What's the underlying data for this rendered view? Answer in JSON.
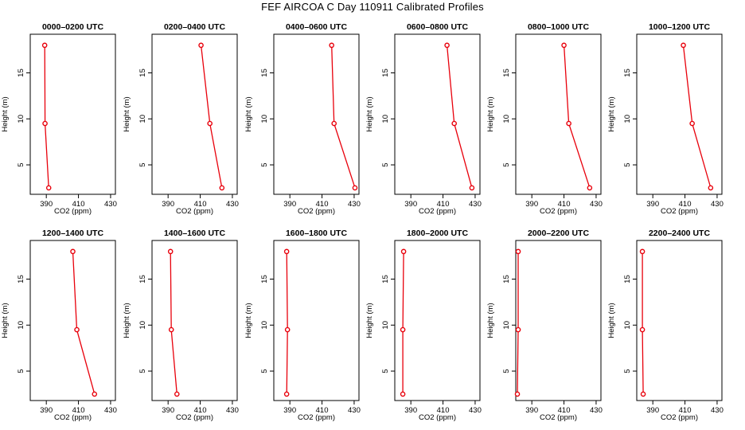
{
  "title": "FEF AIRCOA C  Day 110911  Calibrated Profiles",
  "colors": {
    "series": "#e8000b",
    "axis": "#000000"
  },
  "chart_data": [
    {
      "type": "line",
      "title": "0000–0200 UTC",
      "xlabel": "CO2 (ppm)",
      "ylabel": "Height (m)",
      "xlim": [
        380,
        433
      ],
      "ylim": [
        1.8,
        19.2
      ],
      "xticks": [
        390,
        410,
        430
      ],
      "yticks": [
        5,
        10,
        15
      ],
      "series": [
        {
          "x": [
            389.0,
            389.2,
            391.5
          ],
          "y": [
            18,
            9.5,
            2.5
          ]
        }
      ]
    },
    {
      "type": "line",
      "title": "0200–0400 UTC",
      "xlabel": "CO2 (ppm)",
      "ylabel": "Height (m)",
      "xlim": [
        380,
        433
      ],
      "ylim": [
        1.8,
        19.2
      ],
      "xticks": [
        390,
        410,
        430
      ],
      "yticks": [
        5,
        10,
        15
      ],
      "series": [
        {
          "x": [
            410.5,
            416.0,
            423.5
          ],
          "y": [
            18,
            9.5,
            2.5
          ]
        }
      ]
    },
    {
      "type": "line",
      "title": "0400–0600 UTC",
      "xlabel": "CO2 (ppm)",
      "ylabel": "Height (m)",
      "xlim": [
        380,
        433
      ],
      "ylim": [
        1.8,
        19.2
      ],
      "xticks": [
        390,
        410,
        430
      ],
      "yticks": [
        5,
        10,
        15
      ],
      "series": [
        {
          "x": [
            416.0,
            417.5,
            430.5
          ],
          "y": [
            18,
            9.5,
            2.5
          ]
        }
      ]
    },
    {
      "type": "line",
      "title": "0600–0800 UTC",
      "xlabel": "CO2 (ppm)",
      "ylabel": "Height (m)",
      "xlim": [
        380,
        433
      ],
      "ylim": [
        1.8,
        19.2
      ],
      "xticks": [
        390,
        410,
        430
      ],
      "yticks": [
        5,
        10,
        15
      ],
      "series": [
        {
          "x": [
            412.5,
            417.0,
            428.0
          ],
          "y": [
            18,
            9.5,
            2.5
          ]
        }
      ]
    },
    {
      "type": "line",
      "title": "0800–1000 UTC",
      "xlabel": "CO2 (ppm)",
      "ylabel": "Height (m)",
      "xlim": [
        380,
        433
      ],
      "ylim": [
        1.8,
        19.2
      ],
      "xticks": [
        390,
        410,
        430
      ],
      "yticks": [
        5,
        10,
        15
      ],
      "series": [
        {
          "x": [
            410.0,
            413.0,
            426.0
          ],
          "y": [
            18,
            9.5,
            2.5
          ]
        }
      ]
    },
    {
      "type": "line",
      "title": "1000–1200 UTC",
      "xlabel": "CO2 (ppm)",
      "ylabel": "Height (m)",
      "xlim": [
        380,
        433
      ],
      "ylim": [
        1.8,
        19.2
      ],
      "xticks": [
        390,
        410,
        430
      ],
      "yticks": [
        5,
        10,
        15
      ],
      "series": [
        {
          "x": [
            409.0,
            414.5,
            426.0
          ],
          "y": [
            18,
            9.5,
            2.5
          ]
        }
      ]
    },
    {
      "type": "line",
      "title": "1200–1400 UTC",
      "xlabel": "CO2 (ppm)",
      "ylabel": "Height (m)",
      "xlim": [
        380,
        433
      ],
      "ylim": [
        1.8,
        19.2
      ],
      "xticks": [
        390,
        410,
        430
      ],
      "yticks": [
        5,
        10,
        15
      ],
      "series": [
        {
          "x": [
            406.5,
            409.0,
            420.0
          ],
          "y": [
            18,
            9.5,
            2.5
          ]
        }
      ]
    },
    {
      "type": "line",
      "title": "1400–1600 UTC",
      "xlabel": "CO2 (ppm)",
      "ylabel": "Height (m)",
      "xlim": [
        380,
        433
      ],
      "ylim": [
        1.8,
        19.2
      ],
      "xticks": [
        390,
        410,
        430
      ],
      "yticks": [
        5,
        10,
        15
      ],
      "series": [
        {
          "x": [
            391.5,
            392.0,
            395.5
          ],
          "y": [
            18,
            9.5,
            2.5
          ]
        }
      ]
    },
    {
      "type": "line",
      "title": "1600–1800 UTC",
      "xlabel": "CO2 (ppm)",
      "ylabel": "Height (m)",
      "xlim": [
        380,
        433
      ],
      "ylim": [
        1.8,
        19.2
      ],
      "xticks": [
        390,
        410,
        430
      ],
      "yticks": [
        5,
        10,
        15
      ],
      "series": [
        {
          "x": [
            388.0,
            388.5,
            388.0
          ],
          "y": [
            18,
            9.5,
            2.5
          ]
        }
      ]
    },
    {
      "type": "line",
      "title": "1800–2000 UTC",
      "xlabel": "CO2 (ppm)",
      "ylabel": "Height (m)",
      "xlim": [
        380,
        433
      ],
      "ylim": [
        1.8,
        19.2
      ],
      "xticks": [
        390,
        410,
        430
      ],
      "yticks": [
        5,
        10,
        15
      ],
      "series": [
        {
          "x": [
            385.5,
            385.0,
            385.0
          ],
          "y": [
            18,
            9.5,
            2.5
          ]
        }
      ]
    },
    {
      "type": "line",
      "title": "2000–2200 UTC",
      "xlabel": "CO2 (ppm)",
      "ylabel": "Height (m)",
      "xlim": [
        380,
        433
      ],
      "ylim": [
        1.8,
        19.2
      ],
      "xticks": [
        390,
        410,
        430
      ],
      "yticks": [
        5,
        10,
        15
      ],
      "series": [
        {
          "x": [
            381.5,
            381.5,
            381.0
          ],
          "y": [
            18,
            9.5,
            2.5
          ]
        }
      ]
    },
    {
      "type": "line",
      "title": "2200–2400 UTC",
      "xlabel": "CO2 (ppm)",
      "ylabel": "Height (m)",
      "xlim": [
        380,
        433
      ],
      "ylim": [
        1.8,
        19.2
      ],
      "xticks": [
        390,
        410,
        430
      ],
      "yticks": [
        5,
        10,
        15
      ],
      "series": [
        {
          "x": [
            383.5,
            383.5,
            384.0
          ],
          "y": [
            18,
            9.5,
            2.5
          ]
        }
      ]
    }
  ]
}
